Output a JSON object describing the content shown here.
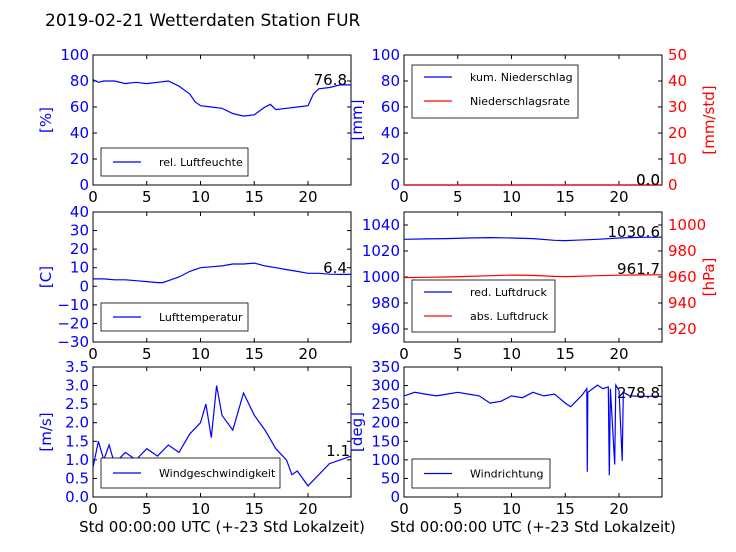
{
  "figure_title": "2019-02-21 Wetterdaten Station FUR\u001f",
  "x_common": {
    "ticks": [
      "0",
      "5",
      "10",
      "15",
      "20"
    ],
    "xlabel": "Std 00:00:00 UTC (+-23 Std Lokalzeit)",
    "range": [
      0,
      24
    ]
  },
  "colors": {
    "axis_left": "#0000ff",
    "axis_right": "#ff0000",
    "series_blue": "#0000ff",
    "series_red": "#ff0000"
  },
  "chart_data": [
    {
      "type": "line",
      "id": "humidity",
      "ylabel": "[%]",
      "ylim": [
        0,
        100
      ],
      "yticks": [
        "0",
        "20",
        "40",
        "60",
        "80",
        "100"
      ],
      "last_value": "76.8",
      "legend": [
        "rel. Luftfeuchte"
      ],
      "series": [
        {
          "name": "rel. Luftfeuchte",
          "color": "#0000ff",
          "x": [
            0,
            0.5,
            1,
            2,
            3,
            4,
            5,
            6,
            7,
            8,
            9,
            9.5,
            10,
            11,
            12,
            13,
            14,
            15,
            15.5,
            16,
            16.5,
            17,
            18,
            19,
            20,
            20.5,
            21,
            22,
            23,
            24
          ],
          "y": [
            81,
            79,
            80,
            80,
            78,
            79,
            78,
            79,
            80,
            76,
            70,
            64,
            61,
            60,
            59,
            55,
            53,
            54,
            57,
            60,
            62,
            58,
            59,
            60,
            61,
            70,
            74,
            75,
            77,
            77
          ]
        }
      ]
    },
    {
      "type": "line",
      "id": "precipitation",
      "ylabel": "[mm]",
      "ylabel_right": "[mm/std]",
      "ylim": [
        0,
        100
      ],
      "ylim_right": [
        0,
        50
      ],
      "yticks": [
        "0",
        "20",
        "40",
        "60",
        "80",
        "100"
      ],
      "yticks_right": [
        "0",
        "10",
        "20",
        "30",
        "40",
        "50"
      ],
      "last_value_a": "0.0",
      "last_value_b": "0.0",
      "legend": [
        "kum. Niederschlag",
        "Niederschlagsrate"
      ],
      "series": [
        {
          "name": "kum. Niederschlag",
          "color": "#0000ff",
          "x": [
            0,
            24
          ],
          "y": [
            0,
            0
          ]
        },
        {
          "name": "Niederschlagsrate",
          "color": "#ff0000",
          "x": [
            0,
            24
          ],
          "y": [
            0,
            0
          ]
        }
      ]
    },
    {
      "type": "line",
      "id": "temperature",
      "ylabel": "[C]",
      "ylim": [
        -30,
        40
      ],
      "yticks": [
        "−30",
        "−20",
        "−10",
        "0",
        "10",
        "20",
        "30",
        "40"
      ],
      "last_value": "6.4",
      "legend": [
        "Lufttemperatur"
      ],
      "series": [
        {
          "name": "Lufttemperatur",
          "color": "#0000ff",
          "x": [
            0,
            1,
            2,
            3,
            4,
            5,
            6,
            6.5,
            7,
            8,
            9,
            10,
            11,
            12,
            13,
            14,
            15,
            16,
            17,
            18,
            19,
            20,
            21,
            22,
            23,
            24
          ],
          "y": [
            4,
            4,
            3.5,
            3.5,
            3,
            2.5,
            2,
            2,
            3,
            5,
            8,
            10,
            10.5,
            11,
            12,
            12,
            12.5,
            11,
            10,
            9,
            8,
            7,
            7,
            6.5,
            6.4,
            6.4
          ]
        }
      ]
    },
    {
      "type": "line",
      "id": "pressure",
      "ylabel_right": "[hPa]",
      "ylim": [
        950,
        1050
      ],
      "ylim_right": [
        910,
        1010
      ],
      "yticks": [
        "960",
        "980",
        "1000",
        "1020",
        "1040"
      ],
      "yticks_right": [
        "920",
        "940",
        "960",
        "980",
        "1000"
      ],
      "last_value_a": "1030.6",
      "last_value_b": "961.7",
      "legend": [
        "red. Luftdruck",
        "abs. Luftdruck"
      ],
      "series": [
        {
          "name": "red. Luftdruck",
          "color": "#0000ff",
          "x": [
            0,
            2,
            4,
            6,
            8,
            10,
            12,
            14,
            15,
            16,
            18,
            20,
            22,
            24
          ],
          "y": [
            1029,
            1029.3,
            1029.5,
            1030,
            1030.3,
            1030,
            1029.5,
            1028.2,
            1028,
            1028.3,
            1029,
            1030,
            1030.5,
            1030.6
          ]
        },
        {
          "name": "abs. Luftdruck",
          "color": "#ff0000",
          "x": [
            0,
            2,
            4,
            6,
            8,
            10,
            12,
            14,
            15,
            16,
            18,
            20,
            22,
            24
          ],
          "y": [
            959.5,
            959.8,
            960,
            960.5,
            961,
            961.5,
            961.2,
            960.5,
            960.3,
            960.5,
            961,
            961.4,
            961.6,
            961.7
          ]
        }
      ]
    },
    {
      "type": "line",
      "id": "wind_speed",
      "ylabel": "[m/s]",
      "ylim": [
        0,
        3.5
      ],
      "yticks": [
        "0.0",
        "0.5",
        "1.0",
        "1.5",
        "2.0",
        "2.5",
        "3.0",
        "3.5"
      ],
      "last_value": "1.1",
      "legend": [
        "Windgeschwindigkeit"
      ],
      "series": [
        {
          "name": "Windgeschwindigkeit",
          "color": "#0000ff",
          "x": [
            0,
            0.5,
            1,
            1.5,
            2,
            3,
            4,
            5,
            6,
            7,
            8,
            9,
            10,
            10.5,
            11,
            11.5,
            12,
            13,
            14,
            15,
            16,
            17,
            18,
            18.5,
            19,
            20,
            21,
            22,
            23,
            24
          ],
          "y": [
            0.8,
            1.5,
            1.0,
            1.4,
            0.9,
            1.2,
            1.0,
            1.3,
            1.1,
            1.4,
            1.2,
            1.7,
            2.0,
            2.5,
            1.6,
            3.0,
            2.2,
            1.8,
            2.8,
            2.2,
            1.8,
            1.3,
            1.0,
            0.6,
            0.7,
            0.3,
            0.6,
            0.9,
            1.0,
            1.1
          ]
        }
      ]
    },
    {
      "type": "line",
      "id": "wind_direction",
      "ylabel": "[deg]",
      "ylim": [
        0,
        360
      ],
      "yticks": [
        "0",
        "50",
        "100",
        "150",
        "200",
        "250",
        "300",
        "350"
      ],
      "last_value": "278.8",
      "legend": [
        "Windrichtung"
      ],
      "series": [
        {
          "name": "Windrichtung",
          "color": "#0000ff",
          "x": [
            0,
            1,
            2,
            3,
            4,
            5,
            6,
            7,
            8,
            9,
            10,
            11,
            12,
            13,
            14,
            15,
            15.5,
            16,
            16.5,
            17,
            17.05,
            17.1,
            18,
            18.5,
            19,
            19.1,
            19.2,
            19.6,
            19.7,
            20,
            20.3,
            20.4,
            21,
            22,
            23,
            24
          ],
          "y": [
            280,
            290,
            285,
            280,
            285,
            290,
            285,
            280,
            260,
            265,
            280,
            275,
            290,
            280,
            285,
            260,
            250,
            265,
            280,
            300,
            70,
            290,
            310,
            300,
            305,
            60,
            300,
            90,
            310,
            295,
            100,
            290,
            280,
            279,
            279,
            278.8
          ]
        }
      ]
    }
  ]
}
